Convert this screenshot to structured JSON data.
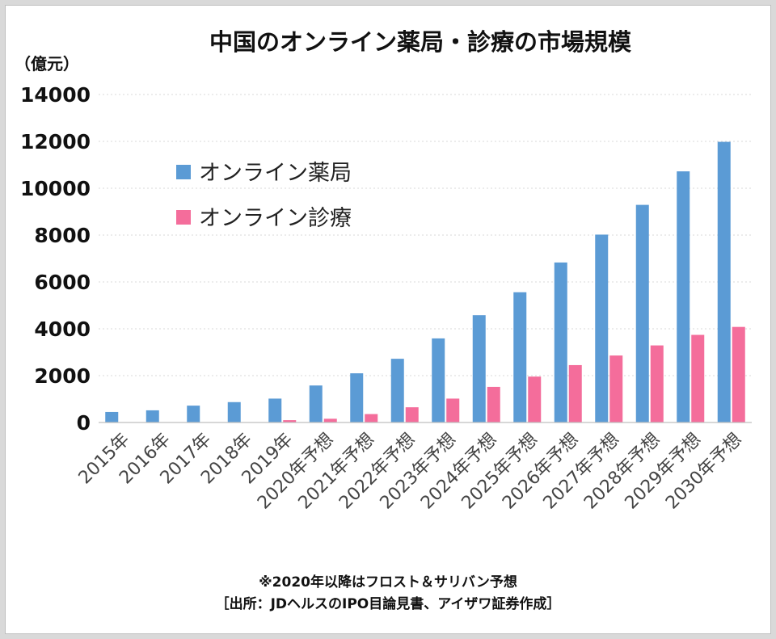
{
  "chart_data": {
    "type": "bar",
    "title": "中国のオンライン薬局・診療の市場規模",
    "ylabel": "（億元）",
    "ylim": [
      0,
      14000
    ],
    "yticks": [
      "0",
      "2000",
      "4000",
      "6000",
      "8000",
      "10000",
      "12000",
      "14000"
    ],
    "grid": true,
    "legend_position": "top-left",
    "categories": [
      "2015年",
      "2016年",
      "2017年",
      "2018年",
      "2019年",
      "2020年予想",
      "2021年予想",
      "2022年予想",
      "2023年予想",
      "2024年予想",
      "2025年予想",
      "2026年予想",
      "2027年予想",
      "2028年予想",
      "2029年予想",
      "2030年予想"
    ],
    "series": [
      {
        "name": "オンライン薬局",
        "color": "#5b9bd5",
        "values": [
          450,
          520,
          720,
          870,
          1020,
          1580,
          2100,
          2720,
          3590,
          4580,
          5560,
          6830,
          8020,
          9290,
          10720,
          11980
        ]
      },
      {
        "name": "オンライン診療",
        "color": "#f46d9b",
        "values": [
          0,
          0,
          0,
          0,
          100,
          160,
          360,
          650,
          1020,
          1520,
          1960,
          2450,
          2860,
          3290,
          3740,
          4080
        ]
      }
    ],
    "notes": [
      "※2020年以降はフロスト＆サリバン予想",
      "［出所：JDヘルスのIPO目論見書、アイザワ証券作成］"
    ]
  }
}
